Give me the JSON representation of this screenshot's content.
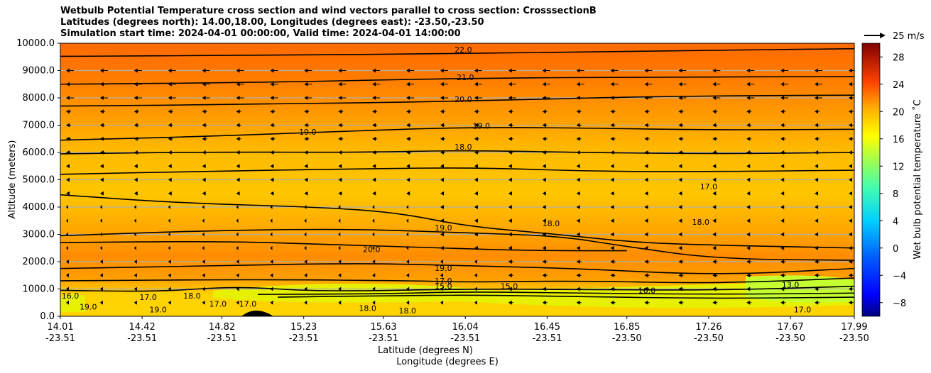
{
  "chart_data": {
    "type": "contourf",
    "title_lines": [
      "Wetbulb Potential Temperature cross section and wind vectors parallel to cross section: CrosssectionB",
      "Latitudes (degrees north): 14.00,18.00, Longitudes (degrees east): -23.50,-23.50",
      "Simulation start time: 2024-04-01 00:00:00, Valid time: 2024-04-01 14:00:00"
    ],
    "ylabel": "Altitude (meters)",
    "xlabel_line1": "Latitude (degrees N)",
    "xlabel_line2": "Longitude (degrees E)",
    "ylim": [
      0,
      10000
    ],
    "y_ticks": [
      {
        "value": 0,
        "label": "0.0"
      },
      {
        "value": 1000,
        "label": "1000.0"
      },
      {
        "value": 2000,
        "label": "2000.0"
      },
      {
        "value": 3000,
        "label": "3000.0"
      },
      {
        "value": 4000,
        "label": "4000.0"
      },
      {
        "value": 5000,
        "label": "5000.0"
      },
      {
        "value": 6000,
        "label": "6000.0"
      },
      {
        "value": 7000,
        "label": "7000.0"
      },
      {
        "value": 8000,
        "label": "8000.0"
      },
      {
        "value": 9000,
        "label": "9000.0"
      },
      {
        "value": 10000,
        "label": "10000.0"
      }
    ],
    "x_ticks": [
      {
        "lat": "14.01",
        "lon": "-23.51"
      },
      {
        "lat": "14.42",
        "lon": "-23.51"
      },
      {
        "lat": "14.82",
        "lon": "-23.51"
      },
      {
        "lat": "15.23",
        "lon": "-23.51"
      },
      {
        "lat": "15.63",
        "lon": "-23.51"
      },
      {
        "lat": "16.04",
        "lon": "-23.51"
      },
      {
        "lat": "16.45",
        "lon": "-23.51"
      },
      {
        "lat": "16.85",
        "lon": "-23.50"
      },
      {
        "lat": "17.26",
        "lon": "-23.50"
      },
      {
        "lat": "17.67",
        "lon": "-23.50"
      },
      {
        "lat": "17.99",
        "lon": "-23.50"
      }
    ],
    "xlim_lat": [
      14.01,
      17.99
    ],
    "contours": [
      {
        "level": 22.0,
        "label": "22.0",
        "points": [
          [
            14.01,
            9520
          ],
          [
            15.0,
            9560
          ],
          [
            16.04,
            9620
          ],
          [
            17.0,
            9720
          ],
          [
            17.99,
            9800
          ]
        ]
      },
      {
        "level": 21.0,
        "label": "21.0",
        "points": [
          [
            14.01,
            8500
          ],
          [
            15.0,
            8560
          ],
          [
            16.04,
            8720
          ],
          [
            17.0,
            8760
          ],
          [
            17.99,
            8780
          ]
        ]
      },
      {
        "level": 20.0,
        "label": "20.0",
        "points": [
          [
            14.01,
            7700
          ],
          [
            15.0,
            7760
          ],
          [
            16.04,
            7880
          ],
          [
            17.0,
            8060
          ],
          [
            17.99,
            8100
          ]
        ]
      },
      {
        "level": 19.0,
        "label": "19.0",
        "points": [
          [
            14.01,
            6450
          ],
          [
            14.8,
            6600
          ],
          [
            15.5,
            6800
          ],
          [
            16.04,
            6920
          ],
          [
            16.6,
            6900
          ],
          [
            17.3,
            6820
          ],
          [
            17.99,
            6850
          ]
        ]
      },
      {
        "level": 18.0,
        "label": "18.0",
        "points": [
          [
            14.01,
            5950
          ],
          [
            14.8,
            6020
          ],
          [
            15.5,
            6000
          ],
          [
            16.04,
            6080
          ],
          [
            16.6,
            6000
          ],
          [
            17.3,
            5950
          ],
          [
            17.99,
            6000
          ]
        ]
      },
      {
        "level": 18.0,
        "label": "",
        "points": [
          [
            14.01,
            5200
          ],
          [
            14.8,
            5320
          ],
          [
            15.5,
            5400
          ],
          [
            16.1,
            5450
          ],
          [
            16.7,
            5300
          ],
          [
            17.3,
            5300
          ],
          [
            17.99,
            5350
          ]
        ]
      },
      {
        "level": 19.0,
        "label": "19.0",
        "points": [
          [
            14.01,
            4450
          ],
          [
            14.6,
            4150
          ],
          [
            15.3,
            4000
          ],
          [
            15.7,
            3800
          ],
          [
            16.04,
            3300
          ],
          [
            16.5,
            3000
          ],
          [
            16.9,
            2700
          ],
          [
            17.3,
            2600
          ],
          [
            17.99,
            2500
          ]
        ]
      },
      {
        "level": 19.0,
        "label": "",
        "points": [
          [
            14.01,
            2950
          ],
          [
            14.8,
            3150
          ],
          [
            15.5,
            3200
          ],
          [
            16.04,
            3050
          ],
          [
            16.5,
            2950
          ],
          [
            16.85,
            2550
          ],
          [
            17.3,
            2100
          ],
          [
            17.99,
            2050
          ]
        ]
      },
      {
        "level": 20.0,
        "label": "20.0",
        "points": [
          [
            14.01,
            2700
          ],
          [
            14.8,
            2750
          ],
          [
            15.3,
            2650
          ],
          [
            15.9,
            2500
          ],
          [
            16.4,
            2400
          ],
          [
            16.85,
            2400
          ]
        ]
      },
      {
        "level": 19.0,
        "label": "19.0",
        "points": [
          [
            14.01,
            1750
          ],
          [
            14.8,
            1850
          ],
          [
            15.5,
            1950
          ],
          [
            16.04,
            1850
          ],
          [
            16.6,
            1750
          ],
          [
            17.3,
            1500
          ],
          [
            17.99,
            1750
          ]
        ]
      },
      {
        "level": 18.0,
        "label": "18.0",
        "points": [
          [
            14.01,
            1300
          ],
          [
            15.0,
            1350
          ],
          [
            15.8,
            1300
          ],
          [
            16.04,
            1250
          ],
          [
            16.6,
            1300
          ],
          [
            17.3,
            1200
          ],
          [
            17.99,
            1400
          ]
        ]
      },
      {
        "level": 17.0,
        "label": "17.0",
        "points": [
          [
            14.01,
            950
          ],
          [
            14.5,
            900
          ],
          [
            14.9,
            1100
          ],
          [
            15.3,
            900
          ],
          [
            16.04,
            1000
          ],
          [
            16.6,
            980
          ],
          [
            17.3,
            950
          ],
          [
            17.99,
            1100
          ]
        ]
      },
      {
        "level": 16.0,
        "label": "16.0",
        "points": [
          [
            15.0,
            800
          ],
          [
            15.6,
            820
          ],
          [
            16.04,
            900
          ],
          [
            16.6,
            850
          ],
          [
            17.3,
            800
          ],
          [
            17.99,
            850
          ]
        ]
      },
      {
        "level": 15.0,
        "label": "15.0",
        "points": [
          [
            15.1,
            700
          ],
          [
            15.6,
            750
          ],
          [
            16.1,
            780
          ],
          [
            16.6,
            720
          ],
          [
            17.3,
            650
          ],
          [
            17.99,
            700
          ]
        ]
      }
    ],
    "contour_labels": [
      {
        "text": "22.0",
        "lat": 16.03,
        "alt": 9720
      },
      {
        "text": "21.0",
        "lat": 16.04,
        "alt": 8700
      },
      {
        "text": "20.0",
        "lat": 16.03,
        "alt": 7900
      },
      {
        "text": "19.0",
        "lat": 16.12,
        "alt": 6920
      },
      {
        "text": "18.0",
        "lat": 16.03,
        "alt": 6150
      },
      {
        "text": "19.0",
        "lat": 15.93,
        "alt": 3200
      },
      {
        "text": "20.0",
        "lat": 15.57,
        "alt": 2400
      },
      {
        "text": "19.0",
        "lat": 15.93,
        "alt": 1720
      },
      {
        "text": "17.0",
        "lat": 15.93,
        "alt": 1250
      },
      {
        "text": "15.0",
        "lat": 15.93,
        "alt": 1050
      },
      {
        "text": "15.0",
        "lat": 16.26,
        "alt": 1050
      },
      {
        "text": "18.0",
        "lat": 16.47,
        "alt": 3350
      },
      {
        "text": "18.0",
        "lat": 17.22,
        "alt": 3400
      },
      {
        "text": "17.0",
        "lat": 17.26,
        "alt": 4700
      },
      {
        "text": "19.0",
        "lat": 14.15,
        "alt": 300
      },
      {
        "text": "19.0",
        "lat": 14.5,
        "alt": 200
      },
      {
        "text": "18.0",
        "lat": 15.55,
        "alt": 250
      },
      {
        "text": "18.0",
        "lat": 15.75,
        "alt": 150
      },
      {
        "text": "17.0",
        "lat": 14.45,
        "alt": 650
      },
      {
        "text": "18.0",
        "lat": 14.67,
        "alt": 700
      },
      {
        "text": "17.0",
        "lat": 14.8,
        "alt": 400
      },
      {
        "text": "17.0",
        "lat": 14.95,
        "alt": 400
      },
      {
        "text": "16.0",
        "lat": 14.06,
        "alt": 700
      },
      {
        "text": "13.0",
        "lat": 17.67,
        "alt": 1100
      },
      {
        "text": "17.0",
        "lat": 17.73,
        "alt": 200
      },
      {
        "text": "16.0",
        "lat": 16.95,
        "alt": 900
      },
      {
        "text": "19.0",
        "lat": 15.25,
        "alt": 6700
      }
    ],
    "wind_vector_rows": [
      9000,
      8500,
      8000,
      7500,
      7000,
      6500,
      6000,
      5500,
      5000,
      4500,
      4000,
      3500,
      3000,
      2500,
      2000,
      1500,
      1000,
      500
    ],
    "colorbar": {
      "label": "Wet bulb potential temperature ˚C",
      "range": [
        -10,
        30
      ],
      "ticks": [
        -8,
        -4,
        0,
        4,
        8,
        12,
        16,
        20,
        24,
        28
      ],
      "tick_labels": [
        "−8",
        "−4",
        "0",
        "4",
        "8",
        "12",
        "16",
        "20",
        "24",
        "28"
      ]
    },
    "quiver_key_label": "25 m/s"
  }
}
